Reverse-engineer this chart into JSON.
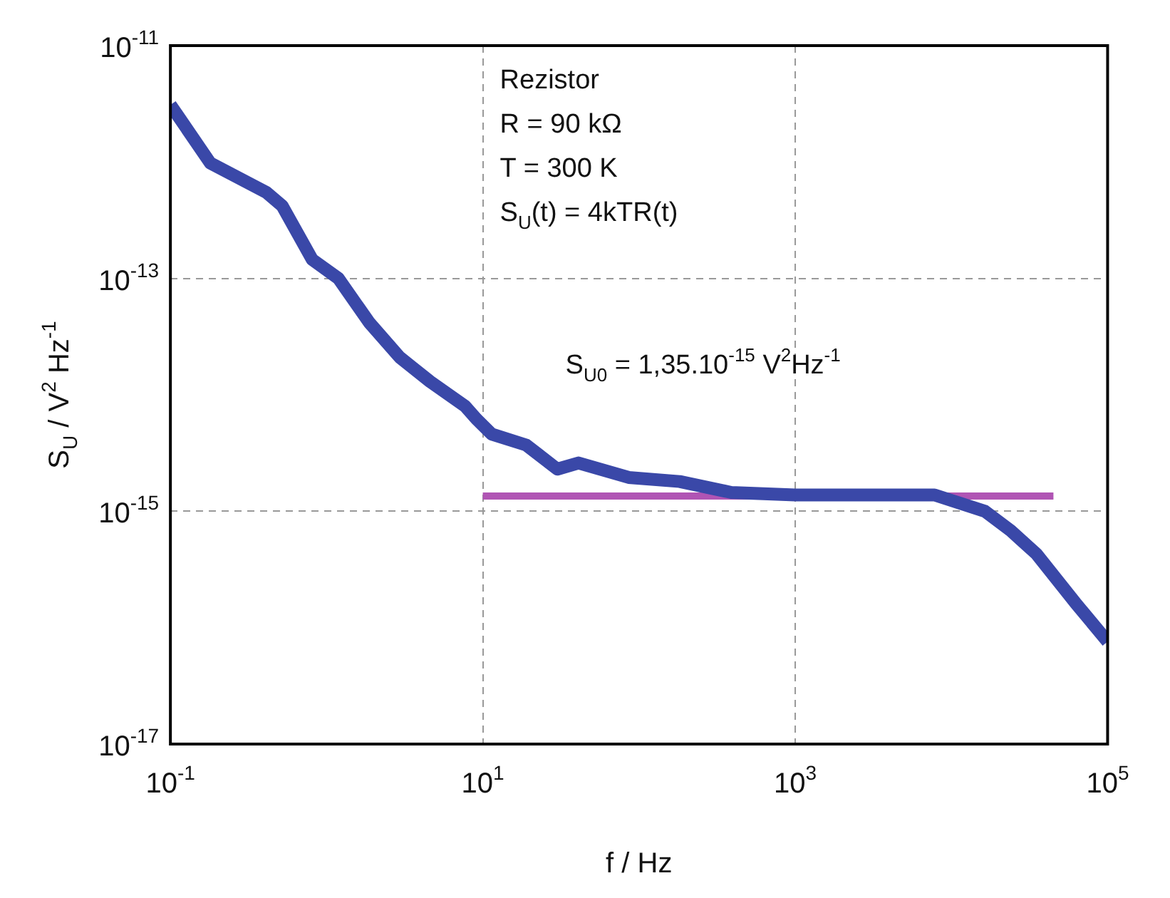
{
  "chart_data": {
    "type": "line",
    "xlabel": "f / Hz",
    "ylabel": "S$_{U}$ / V$^{2}$ Hz$^{-1}$",
    "log": "xy",
    "grid": true,
    "legend": false,
    "marker": "none",
    "line_style": "solid",
    "xlim": [
      0.1,
      100000
    ],
    "xticks": [
      {
        "value": 0.1,
        "label": "10$^{-1}$"
      },
      {
        "value": 10,
        "label": "10$^{1}$"
      },
      {
        "value": 1000,
        "label": "10$^{3}$"
      },
      {
        "value": 100000,
        "label": "10$^{5}$"
      }
    ],
    "ylim": [
      1e-17,
      1e-11
    ],
    "yticks": [
      {
        "value": 1e-17,
        "label": "10$^{-17}$"
      },
      {
        "value": 1e-15,
        "label": "10$^{-15}$"
      },
      {
        "value": 1e-13,
        "label": "10$^{-13}$"
      },
      {
        "value": 1e-11,
        "label": "10$^{-11}$"
      }
    ],
    "series": [
      {
        "color": "#3a48a8",
        "x": [
          0.1,
          0.18,
          0.41,
          0.52,
          0.81,
          1.19,
          1.87,
          2.94,
          4.6,
          7.7,
          9.1,
          11.4,
          19,
          30,
          41,
          86,
          182,
          390,
          1000,
          7800,
          16400,
          24000,
          35000,
          63000,
          100000
        ],
        "values": [
          3.1e-12,
          9.8e-13,
          5.5e-13,
          4.2e-13,
          1.45e-13,
          1e-13,
          4.2e-14,
          2.1e-14,
          1.3e-14,
          8e-15,
          6.2e-15,
          4.6e-15,
          3.7e-15,
          2.3e-15,
          2.6e-15,
          1.95e-15,
          1.8e-15,
          1.45e-15,
          1.38e-15,
          1.38e-15,
          1e-15,
          6.8e-16,
          4.3e-16,
          1.6e-16,
          7.6e-17
        ]
      },
      {
        "type": "line",
        "color": "#b054b4",
        "x": [
          10,
          45000
        ],
        "values": [
          1.35e-15,
          1.35e-15
        ]
      }
    ],
    "annotations": [
      "Rezistor",
      "R = 90 kΩ",
      "T = 300 K",
      "S$_{U}$(t) = 4kTR(t)",
      "S$_{U0}$ = 1,35.10$^{-15}$ V$^{2}$Hz$^{-1}$"
    ]
  }
}
